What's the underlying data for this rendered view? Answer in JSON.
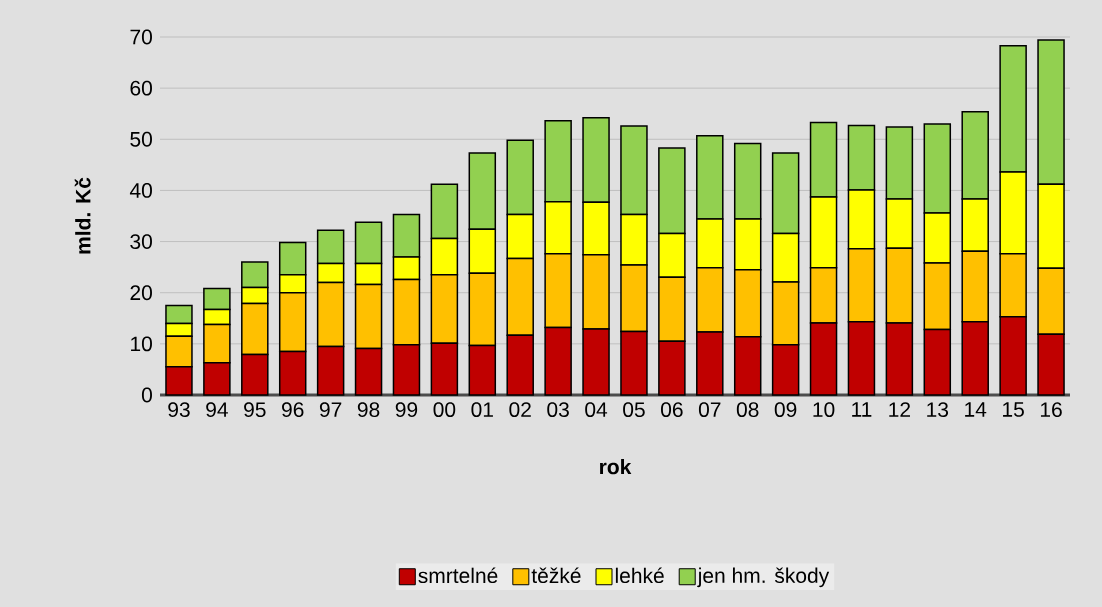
{
  "chart_data": {
    "type": "bar",
    "stacked": true,
    "xlabel": "rok",
    "ylabel": "mld. Kč",
    "categories": [
      "93",
      "94",
      "95",
      "96",
      "97",
      "98",
      "99",
      "00",
      "01",
      "02",
      "03",
      "04",
      "05",
      "06",
      "07",
      "08",
      "09",
      "10",
      "11",
      "12",
      "13",
      "14",
      "15",
      "16"
    ],
    "series": [
      {
        "name": "smrtelné",
        "color": "#c00000",
        "values": [
          5.5,
          6.3,
          7.9,
          8.5,
          9.5,
          9.1,
          9.8,
          10.1,
          9.7,
          11.7,
          13.2,
          12.9,
          12.4,
          10.5,
          12.3,
          11.4,
          9.8,
          14.1,
          14.3,
          14.1,
          12.8,
          14.3,
          15.3,
          11.9
        ]
      },
      {
        "name": "těžké",
        "color": "#ffc000",
        "values": [
          6,
          7.5,
          10,
          11.5,
          12.5,
          12.5,
          12.8,
          13.4,
          14.1,
          15,
          14.4,
          14.5,
          13,
          12.5,
          12.6,
          13.1,
          12.3,
          10.8,
          14.3,
          14.6,
          13,
          13.8,
          12.3,
          12.9
        ]
      },
      {
        "name": "lehké",
        "color": "#ffff00",
        "values": [
          2.5,
          2.9,
          3.1,
          3.5,
          3.7,
          4.1,
          4.4,
          7.1,
          8.6,
          8.6,
          10.2,
          10.3,
          9.9,
          8.6,
          9.5,
          9.9,
          9.5,
          13.8,
          11.5,
          9.6,
          9.8,
          10.2,
          16,
          16.4
        ]
      },
      {
        "name": "jen hm. škody",
        "color": "#92d050",
        "values": [
          3.5,
          4.1,
          5,
          6.3,
          6.5,
          8.1,
          8.3,
          10.6,
          14.9,
          14.5,
          15.8,
          16.5,
          17.3,
          16.7,
          16.3,
          14.8,
          15.7,
          14.6,
          12.6,
          14.1,
          17.4,
          17.1,
          24.7,
          28.2
        ]
      }
    ],
    "ylim": [
      0,
      70
    ],
    "yticks": [
      0,
      10,
      20,
      30,
      40,
      50,
      60,
      70
    ],
    "grid": "y",
    "legend": "bottom"
  }
}
